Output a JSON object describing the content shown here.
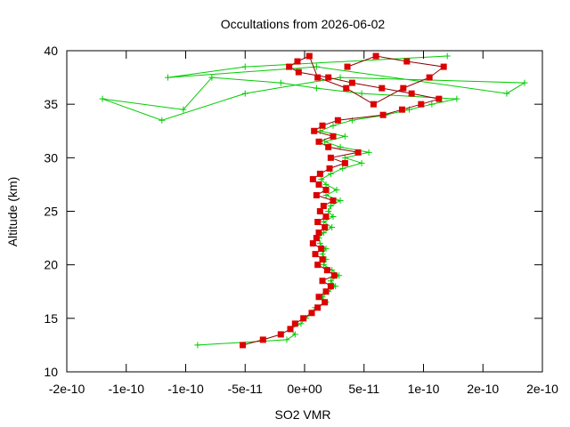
{
  "chart_data": {
    "type": "line",
    "title": "Occultations from 2026-06-02",
    "xlabel": "SO2 VMR",
    "ylabel": "Altitude (km)",
    "xlim": [
      -2e-10,
      2e-10
    ],
    "ylim": [
      10,
      40
    ],
    "xticks": [
      -2e-10,
      -1.5e-10,
      -1e-10,
      -5e-11,
      0,
      5e-11,
      1e-10,
      1.5e-10,
      2e-10
    ],
    "xtick_labels": [
      "-2e-10",
      "-1e-10",
      "-1e-10",
      "-5e-11",
      "0e+00",
      "5e-11",
      "1e-10",
      "2e-10",
      "2e-10"
    ],
    "yticks": [
      10,
      15,
      20,
      25,
      30,
      35,
      40
    ],
    "ytick_labels": [
      "10",
      "15",
      "20",
      "25",
      "30",
      "35",
      "40"
    ],
    "grid": false,
    "legend": "none",
    "colors": {
      "series_a": "#00cc00",
      "series_b": "#dd0000",
      "series_b_line": "#8b0000"
    },
    "series": [
      {
        "marker": "plus",
        "x": [
          -9e-11,
          -1.5e-11,
          -8e-12,
          -1.2e-11,
          -3e-12,
          1e-12,
          6e-12,
          9e-12,
          1.8e-11,
          1.5e-11,
          2e-11,
          2.6e-11,
          2.2e-11,
          2.9e-11,
          2.3e-11,
          1.6e-11,
          1.8e-11,
          1.5e-11,
          1.8e-11,
          1.3e-11,
          1.2e-11,
          1.6e-11,
          2.3e-11,
          1.6e-11,
          2.4e-11,
          2e-11,
          2.2e-11,
          3e-11,
          1.8e-11,
          2.7e-11,
          1.8e-11,
          1.4e-11,
          2.2e-11,
          3.2e-11,
          4.8e-11,
          3.4e-11,
          5.4e-11,
          3e-11,
          1.7e-11,
          3.4e-11,
          1.3e-11,
          2.4e-11,
          4e-11,
          6.8e-11,
          8.8e-11,
          1.07e-10,
          1.28e-10,
          4.8e-11,
          1e-11,
          -2e-11,
          -7.8e-11,
          -1.02e-10,
          -1.7e-10,
          -1.2e-10,
          -5e-11,
          3e-11,
          1.85e-10,
          1.7e-10,
          1e-11,
          -1.15e-10,
          -5e-11,
          1.2e-10
        ],
        "y": [
          12.5,
          13.0,
          13.5,
          14.0,
          14.5,
          15.0,
          15.5,
          16.0,
          16.5,
          17.0,
          17.5,
          18.0,
          18.5,
          19.0,
          19.5,
          20.0,
          20.5,
          21.0,
          21.5,
          22.0,
          22.5,
          23.0,
          23.5,
          24.0,
          24.5,
          25.0,
          25.5,
          26.0,
          26.5,
          27.0,
          27.5,
          28.0,
          28.5,
          29.0,
          29.5,
          30.0,
          30.5,
          31.0,
          31.5,
          32.0,
          32.5,
          33.0,
          33.5,
          34.0,
          34.5,
          35.0,
          35.5,
          36.0,
          36.5,
          37.0,
          37.5,
          34.5,
          35.5,
          33.5,
          36.0,
          37.5,
          37.0,
          36.0,
          38.5,
          37.5,
          38.5,
          39.5
        ]
      },
      {
        "marker": "square",
        "x": [
          -5.2e-11,
          -3.5e-11,
          -2e-11,
          -1.2e-11,
          -8e-12,
          -1e-12,
          6e-12,
          1.1e-11,
          1.7e-11,
          1.2e-11,
          1.8e-11,
          2.2e-11,
          1.5e-11,
          2.5e-11,
          1.9e-11,
          1.1e-11,
          1.5e-11,
          9e-12,
          1.4e-11,
          7e-12,
          1e-11,
          1.2e-11,
          1.7e-11,
          1.1e-11,
          1.8e-11,
          1.3e-11,
          1.6e-11,
          2.4e-11,
          1e-11,
          1.8e-11,
          1.2e-11,
          7e-12,
          1.3e-11,
          2.1e-11,
          3.4e-11,
          2.2e-11,
          4.5e-11,
          2e-11,
          1.2e-11,
          2.4e-11,
          8e-12,
          1.5e-11,
          2.8e-11,
          6.6e-11,
          8.2e-11,
          9.8e-11,
          1.13e-10,
          9e-11,
          6.5e-11,
          4e-11,
          2e-11,
          -5e-12,
          -1.3e-11,
          -6e-12,
          4e-12,
          1.1e-11,
          3.5e-11,
          5.8e-11,
          8.3e-11,
          1.05e-10,
          1.17e-10,
          8.6e-11,
          6e-11,
          3.6e-11
        ],
        "y": [
          12.5,
          13.0,
          13.5,
          14.0,
          14.5,
          15.0,
          15.5,
          16.0,
          16.5,
          17.0,
          17.5,
          18.0,
          18.5,
          19.0,
          19.5,
          20.0,
          20.5,
          21.0,
          21.5,
          22.0,
          22.5,
          23.0,
          23.5,
          24.0,
          24.5,
          25.0,
          25.5,
          26.0,
          26.5,
          27.0,
          27.5,
          28.0,
          28.5,
          29.0,
          29.5,
          30.0,
          30.5,
          31.0,
          31.5,
          32.0,
          32.5,
          33.0,
          33.5,
          34.0,
          34.5,
          35.0,
          35.5,
          36.0,
          36.5,
          37.0,
          37.5,
          38.0,
          38.5,
          39.0,
          39.5,
          37.5,
          36.5,
          35.0,
          36.5,
          37.5,
          38.5,
          39.0,
          39.5,
          38.5
        ]
      }
    ]
  }
}
